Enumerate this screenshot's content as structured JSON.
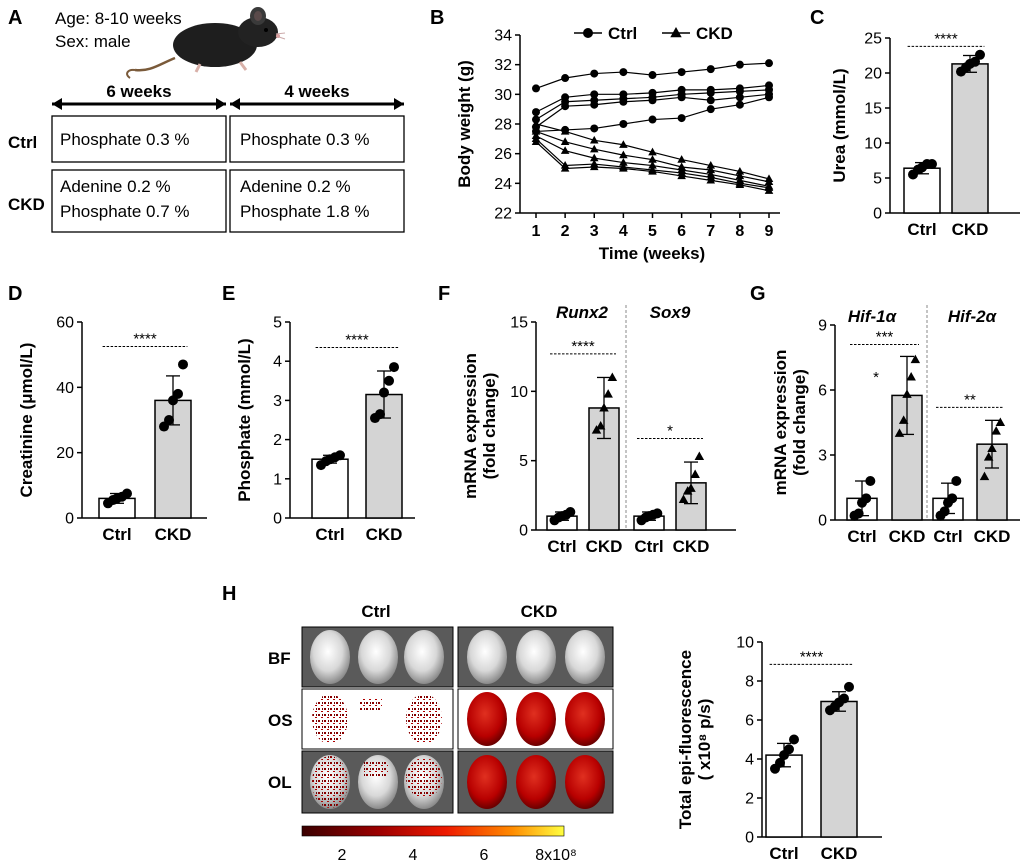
{
  "panel_letters": [
    "A",
    "B",
    "C",
    "D",
    "E",
    "F",
    "G",
    "H"
  ],
  "panel_a": {
    "age": "Age: 8-10 weeks",
    "sex": "Sex: male",
    "period1": "6 weeks",
    "period2": "4 weeks",
    "row_ctrl": "Ctrl",
    "row_ckd": "CKD",
    "ctrl_cell1": [
      "Phosphate 0.3 %"
    ],
    "ctrl_cell2": [
      "Phosphate 0.3 %"
    ],
    "ckd_cell1": [
      "Adenine 0.2 %",
      "Phosphate 0.7 %"
    ],
    "ckd_cell2": [
      "Adenine 0.2 %",
      "Phosphate 1.8 %"
    ]
  },
  "panel_h": {
    "col_ctrl": "Ctrl",
    "col_ckd": "CKD",
    "rows": [
      "BF",
      "OS",
      "OL"
    ],
    "colorbar_ticks": [
      "2",
      "4",
      "6",
      "8x10⁸"
    ]
  },
  "chart_data": [
    {
      "id": "B",
      "type": "line",
      "xlabel": "Time (weeks)",
      "ylabel": "Body weight (g)",
      "x": [
        1,
        2,
        3,
        4,
        5,
        6,
        7,
        8,
        9
      ],
      "xticks": [
        "1",
        "2",
        "3",
        "4",
        "5",
        "6",
        "7",
        "8",
        "9"
      ],
      "ylim": [
        22,
        34
      ],
      "yticks": [
        "22",
        "24",
        "26",
        "28",
        "30",
        "32",
        "34"
      ],
      "legend": [
        "Ctrl",
        "CKD"
      ],
      "series": [
        {
          "name": "Ctrl",
          "marker": "circle",
          "values": [
            30.4,
            31.1,
            31.4,
            31.5,
            31.3,
            31.5,
            31.7,
            32.0,
            32.1
          ]
        },
        {
          "name": "Ctrl",
          "marker": "circle",
          "values": [
            28.8,
            29.8,
            30.0,
            30.0,
            30.1,
            30.3,
            30.3,
            30.4,
            30.6
          ]
        },
        {
          "name": "Ctrl",
          "marker": "circle",
          "values": [
            28.3,
            29.5,
            29.6,
            29.7,
            29.8,
            30.0,
            30.1,
            30.2,
            30.3
          ]
        },
        {
          "name": "Ctrl",
          "marker": "circle",
          "values": [
            27.8,
            29.2,
            29.3,
            29.5,
            29.6,
            29.8,
            29.6,
            29.8,
            30.0
          ]
        },
        {
          "name": "Ctrl",
          "marker": "circle",
          "values": [
            27.5,
            27.6,
            27.7,
            28.0,
            28.3,
            28.4,
            29.0,
            29.3,
            29.8
          ]
        },
        {
          "name": "CKD",
          "marker": "triangle",
          "values": [
            28.0,
            27.5,
            26.9,
            26.6,
            26.1,
            25.6,
            25.2,
            24.8,
            24.3
          ]
        },
        {
          "name": "CKD",
          "marker": "triangle",
          "values": [
            27.5,
            26.8,
            26.3,
            25.9,
            25.6,
            25.1,
            24.9,
            24.5,
            24.1
          ]
        },
        {
          "name": "CKD",
          "marker": "triangle",
          "values": [
            27.2,
            26.2,
            25.7,
            25.4,
            25.2,
            24.9,
            24.6,
            24.2,
            23.8
          ]
        },
        {
          "name": "CKD",
          "marker": "triangle",
          "values": [
            27.0,
            25.2,
            25.3,
            25.1,
            24.9,
            24.7,
            24.4,
            24.0,
            23.7
          ]
        },
        {
          "name": "CKD",
          "marker": "triangle",
          "values": [
            26.8,
            25.0,
            25.1,
            25.0,
            24.8,
            24.5,
            24.2,
            23.9,
            23.5
          ]
        }
      ]
    },
    {
      "id": "C",
      "type": "bar",
      "ylabel": "Urea (mmol/L)",
      "ylim": [
        0,
        25
      ],
      "yticks": [
        "0",
        "5",
        "10",
        "15",
        "20",
        "25"
      ],
      "categories": [
        "Ctrl",
        "CKD"
      ],
      "values": [
        6.4,
        21.3
      ],
      "sd": [
        0.8,
        1.2
      ],
      "points": [
        [
          5.5,
          6.2,
          6.5,
          7.0,
          7.0
        ],
        [
          20.2,
          20.8,
          21.3,
          21.6,
          22.6
        ]
      ],
      "sig": [
        {
          "label": "****",
          "from": 0,
          "to": 1,
          "y": 23.8
        }
      ]
    },
    {
      "id": "D",
      "type": "bar",
      "ylabel": "Creatinine (μmol/L)",
      "ylim": [
        0,
        60
      ],
      "yticks": [
        "0",
        "20",
        "40",
        "60"
      ],
      "categories": [
        "Ctrl",
        "CKD"
      ],
      "values": [
        6.0,
        36.0
      ],
      "sd": [
        1.5,
        7.5
      ],
      "points": [
        [
          4.5,
          5.5,
          6.0,
          6.5,
          7.5
        ],
        [
          28.0,
          30.0,
          36.0,
          38.0,
          47.0
        ]
      ],
      "sig": [
        {
          "label": "****",
          "from": 0,
          "to": 1,
          "y": 52.5
        }
      ]
    },
    {
      "id": "E",
      "type": "bar",
      "ylabel": "Phosphate (mmol/L)",
      "ylim": [
        0,
        5
      ],
      "yticks": [
        "0",
        "1",
        "2",
        "3",
        "4",
        "5"
      ],
      "categories": [
        "Ctrl",
        "CKD"
      ],
      "values": [
        1.5,
        3.15
      ],
      "sd": [
        0.1,
        0.6
      ],
      "points": [
        [
          1.35,
          1.45,
          1.5,
          1.55,
          1.6
        ],
        [
          2.55,
          2.65,
          3.2,
          3.5,
          3.85
        ]
      ],
      "sig": [
        {
          "label": "****",
          "from": 0,
          "to": 1,
          "y": 4.35
        }
      ]
    },
    {
      "id": "F",
      "type": "bar",
      "ylabel": "mRNA expression (fold change)",
      "ylim": [
        0,
        15
      ],
      "yticks": [
        "0",
        "5",
        "10",
        "15"
      ],
      "groups": [
        "Runx2",
        "Sox9"
      ],
      "categories": [
        "Ctrl",
        "CKD",
        "Ctrl",
        "CKD"
      ],
      "values": [
        1.0,
        8.8,
        1.0,
        3.4
      ],
      "sd": [
        0.3,
        2.2,
        0.3,
        1.5
      ],
      "points": [
        [
          0.7,
          0.9,
          1.0,
          1.1,
          1.3
        ],
        [
          7.2,
          7.5,
          8.8,
          9.8,
          11.0
        ],
        [
          0.7,
          0.9,
          1.0,
          1.1,
          1.2
        ],
        [
          2.2,
          2.8,
          3.0,
          4.0,
          5.3
        ]
      ],
      "sig": [
        {
          "label": "****",
          "from": 0,
          "to": 1,
          "y": 12.7
        },
        {
          "label": "*",
          "from": 2,
          "to": 3,
          "y": 6.6
        }
      ]
    },
    {
      "id": "G",
      "type": "bar",
      "ylabel": "mRNA expression (fold change)",
      "ylim": [
        0,
        9
      ],
      "yticks": [
        "0",
        "3",
        "6",
        "9"
      ],
      "groups": [
        "Hif-1α",
        "Hif-2α"
      ],
      "categories": [
        "Ctrl",
        "CKD",
        "Ctrl",
        "CKD"
      ],
      "values": [
        1.0,
        5.75,
        1.0,
        3.5
      ],
      "sd": [
        0.8,
        1.8,
        0.7,
        1.1
      ],
      "points": [
        [
          0.2,
          0.3,
          0.8,
          1.0,
          1.8
        ],
        [
          4.0,
          4.6,
          5.8,
          6.6,
          7.4
        ],
        [
          0.2,
          0.4,
          0.8,
          1.0,
          1.8
        ],
        [
          2.0,
          2.9,
          3.3,
          4.1,
          4.5
        ]
      ],
      "sig": [
        {
          "label": "***",
          "from": 0,
          "to": 1,
          "y": 8.1
        },
        {
          "label": "**",
          "from": 2,
          "to": 3,
          "y": 5.2
        }
      ],
      "annotation": "*"
    },
    {
      "id": "H",
      "type": "bar",
      "ylabel": "Total epi-fluorescence ( x10⁸ p/s)",
      "ylim": [
        0,
        10
      ],
      "yticks": [
        "0",
        "2",
        "4",
        "6",
        "8",
        "10"
      ],
      "categories": [
        "Ctrl",
        "CKD"
      ],
      "values": [
        4.2,
        6.95
      ],
      "sd": [
        0.6,
        0.5
      ],
      "points": [
        [
          3.5,
          3.8,
          4.2,
          4.5,
          5.0
        ],
        [
          6.5,
          6.7,
          6.9,
          7.1,
          7.7
        ]
      ],
      "sig": [
        {
          "label": "****",
          "from": 0,
          "to": 1,
          "y": 8.85
        }
      ]
    }
  ]
}
